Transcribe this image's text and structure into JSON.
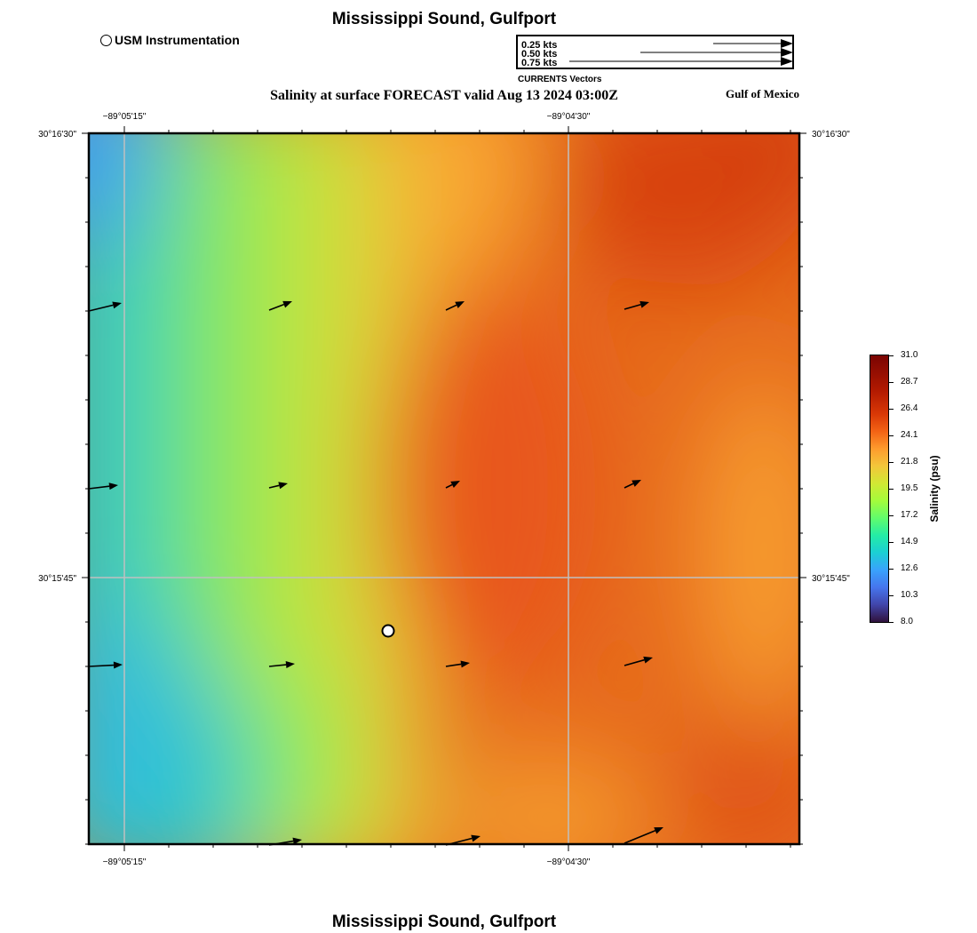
{
  "header": {
    "title": "Mississippi Sound, Gulfport",
    "subtitle": "Salinity at surface FORECAST valid Aug 13 2024 03:00Z",
    "region": "Gulf of Mexico",
    "usm_label": "USM Instrumentation"
  },
  "footer": {
    "title": "Mississippi Sound, Gulfport"
  },
  "vector_legend": {
    "title": "CURRENTS Vectors",
    "entries": [
      "0.25 kts",
      "0.50 kts",
      "0.75 kts"
    ]
  },
  "axes": {
    "top_ticks": [
      "−89°05'15\"",
      "−89°04'30\""
    ],
    "bottom_ticks": [
      "−89°05'15\"",
      "−89°04'30\""
    ],
    "left_ticks": [
      "30°16'30\"",
      "30°15'45\""
    ],
    "right_ticks": [
      "30°16'30\"",
      "30°15'45\""
    ]
  },
  "colorbar": {
    "label": "Salinity (psu)",
    "min": 8.0,
    "max": 31.0,
    "ticks": [
      "31.0",
      "28.7",
      "26.4",
      "24.1",
      "21.8",
      "19.5",
      "17.2",
      "14.9",
      "12.6",
      "10.3",
      "8.0"
    ],
    "colormap": "turbo"
  },
  "colors": {
    "grid": "#c0c0c0",
    "marker_fill": "#ffffff",
    "arrow": "#000000"
  }
}
